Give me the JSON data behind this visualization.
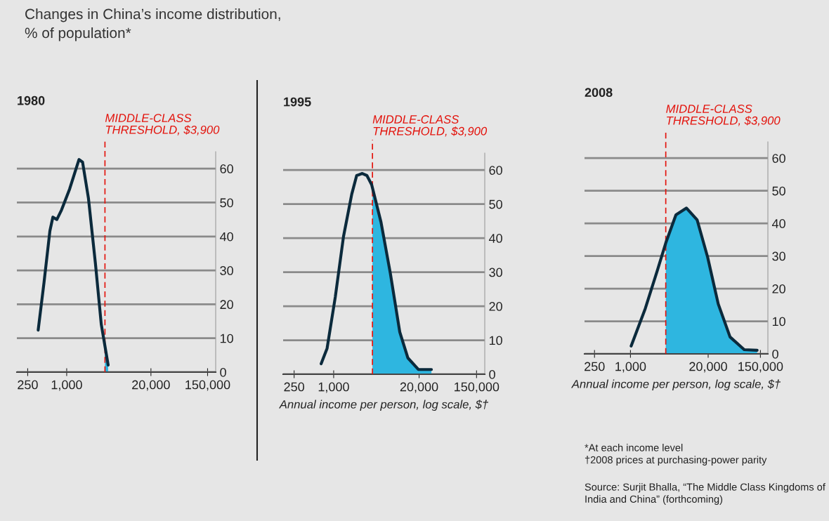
{
  "chart_data": [
    {
      "type": "line",
      "title": "1980",
      "annotations": [
        "Changes in China’s income distribution,\n% of population*"
      ],
      "log": "x",
      "grid": "y",
      "xlim": [
        170,
        200000
      ],
      "ylim": [
        0,
        65
      ],
      "xticks": [
        {
          "value": 250,
          "label": "250"
        },
        {
          "value": 1000,
          "label": "1,000"
        },
        {
          "value": 20000,
          "label": "20,000"
        },
        {
          "value": 150000,
          "label": "150,000"
        }
      ],
      "yticks": [
        0,
        10,
        20,
        30,
        40,
        50,
        60
      ],
      "ref_lines": [
        {
          "axis": "x",
          "value": 3900,
          "label": "MIDDLE-CLASS\nTHRESHOLD, $3,900",
          "color": "#e3120b",
          "line_style": "dashed"
        }
      ],
      "series": [
        {
          "type": "area",
          "color": "#2eb6e0",
          "x": [
            3900,
            4370
          ],
          "values": [
            6,
            2.1
          ]
        },
        {
          "color": "#0b2a3c",
          "x": [
            363,
            447,
            550,
            612,
            705,
            832,
            1110,
            1550,
            1760,
            2170,
            2780,
            3420,
            4370
          ],
          "values": [
            12.4,
            26.5,
            41.6,
            45.7,
            45,
            47.8,
            54,
            62.7,
            61.9,
            51.2,
            32,
            14.1,
            2.1
          ]
        }
      ]
    },
    {
      "type": "line",
      "title": "1995",
      "xlabel": "Annual income per person, log scale, $†",
      "log": "x",
      "grid": "y",
      "xlim": [
        170,
        200000
      ],
      "ylim": [
        0,
        65
      ],
      "xticks": [
        {
          "value": 250,
          "label": "250"
        },
        {
          "value": 1000,
          "label": "1,000"
        },
        {
          "value": 20000,
          "label": "20,000"
        },
        {
          "value": 150000,
          "label": "150,000"
        }
      ],
      "yticks": [
        0,
        10,
        20,
        30,
        40,
        50,
        60
      ],
      "ref_lines": [
        {
          "axis": "x",
          "value": 3900,
          "label": "MIDDLE-CLASS\nTHRESHOLD, $3,900",
          "color": "#e3120b",
          "line_style": "dashed"
        }
      ],
      "series": [
        {
          "type": "area",
          "color": "#2eb6e0",
          "x": [
            3900,
            5260,
            7310,
            10160,
            13490,
            19500,
            30800
          ],
          "values": [
            55.5,
            44.7,
            29.6,
            12.4,
            4.8,
            1.4,
            1.4
          ]
        },
        {
          "color": "#0b2a3c",
          "x": [
            645,
            794,
            1059,
            1413,
            1885,
            2240,
            2730,
            3210,
            3790,
            5260,
            7310,
            10160,
            13490,
            19500,
            30800
          ],
          "values": [
            3.1,
            7.6,
            22.7,
            40.5,
            52.9,
            58.4,
            59,
            58.4,
            55.7,
            44.7,
            29.6,
            12.4,
            4.8,
            1.4,
            1.4
          ]
        }
      ]
    },
    {
      "type": "line",
      "title": "2008",
      "xlabel": "Annual income per person, log scale, $†",
      "annotations": [
        "*At each income level\n†2008 prices at purchasing-power parity",
        "Source: Surjit Bhalla, “The Middle Class Kingdoms of\nIndia and China” (forthcoming)"
      ],
      "log": "x",
      "grid": "y",
      "xlim": [
        170,
        200000
      ],
      "ylim": [
        0,
        65
      ],
      "xticks": [
        {
          "value": 250,
          "label": "250"
        },
        {
          "value": 1000,
          "label": "1,000"
        },
        {
          "value": 20000,
          "label": "20,000"
        },
        {
          "value": 150000,
          "label": "150,000"
        }
      ],
      "yticks": [
        0,
        10,
        20,
        30,
        40,
        50,
        60
      ],
      "ref_lines": [
        {
          "axis": "x",
          "value": 3900,
          "label": "MIDDLE-CLASS\nTHRESHOLD, $3,900",
          "color": "#e3120b",
          "line_style": "dashed"
        }
      ],
      "series": [
        {
          "type": "area",
          "color": "#2eb6e0",
          "x": [
            3900,
            5770,
            8670,
            13060,
            19630,
            29500,
            46500,
            80400,
            132000
          ],
          "values": [
            34,
            42.6,
            44.7,
            41.1,
            29.6,
            15.3,
            5.2,
            1.3,
            1.1
          ]
        },
        {
          "color": "#0b2a3c",
          "x": [
            1027,
            1770,
            2790,
            3900,
            5770,
            8670,
            13060,
            19630,
            29500,
            46500,
            80400,
            132000
          ],
          "values": [
            2.4,
            13.9,
            25.3,
            34,
            42.6,
            44.7,
            41.1,
            29.6,
            15.3,
            5.2,
            1.3,
            1.1
          ]
        }
      ]
    }
  ]
}
